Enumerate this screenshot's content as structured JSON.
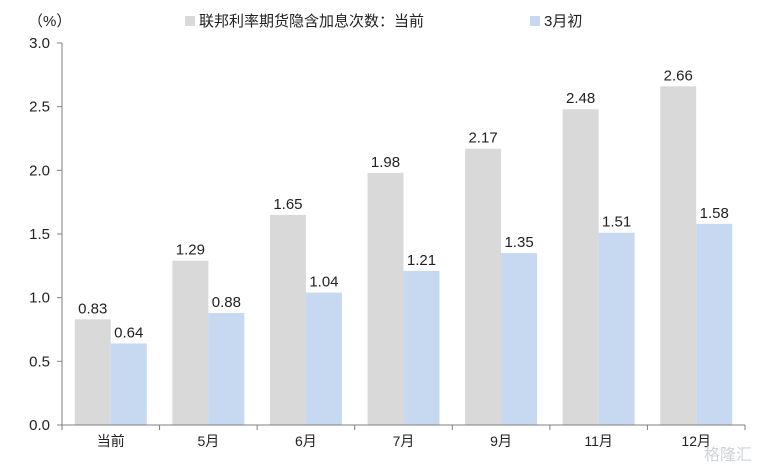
{
  "chart_data": {
    "type": "bar",
    "unit_label": "（%）",
    "categories": [
      "当前",
      "5月",
      "6月",
      "7月",
      "9月",
      "11月",
      "12月"
    ],
    "series": [
      {
        "name": "联邦利率期货隐含加息次数：当前",
        "values": [
          0.83,
          1.29,
          1.65,
          1.98,
          2.17,
          2.48,
          2.66
        ],
        "color": "#d9d9d9"
      },
      {
        "name": "3月初",
        "values": [
          0.64,
          0.88,
          1.04,
          1.21,
          1.35,
          1.51,
          1.58
        ],
        "color": "#c6d9f1"
      }
    ],
    "ylim": [
      0,
      3.0
    ],
    "yticks": [
      "0.0",
      "0.5",
      "1.0",
      "1.5",
      "2.0",
      "2.5",
      "3.0"
    ],
    "grid": false,
    "legend": "top"
  },
  "watermark": "格隆汇"
}
